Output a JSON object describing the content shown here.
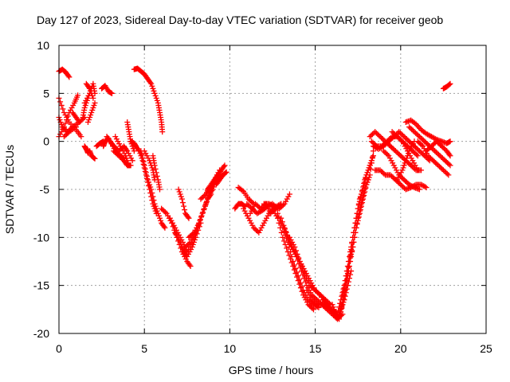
{
  "chart_data": {
    "type": "scatter",
    "title": "Day 127 of 2023, Sidereal Day-to-day VTEC variation (SDTVAR) for receiver geob",
    "xlabel": "GPS time / hours",
    "ylabel": "SDTVAR / TECUs",
    "xlim": [
      0,
      25
    ],
    "ylim": [
      -20,
      10
    ],
    "xticks": [
      0,
      5,
      10,
      15,
      20,
      25
    ],
    "yticks": [
      -20,
      -15,
      -10,
      -5,
      0,
      5,
      10
    ],
    "xtick_labels": [
      "0",
      "5",
      "10",
      "15",
      "20",
      "25"
    ],
    "ytick_labels": [
      "-20",
      "-15",
      "-10",
      "-5",
      "0",
      "5",
      "10"
    ],
    "grid": true,
    "marker": "+",
    "color": "#ff0000",
    "series": [
      {
        "x": [
          0.0,
          0.2,
          0.4,
          0.6
        ],
        "y": [
          7.3,
          7.5,
          7.2,
          6.7
        ]
      },
      {
        "x": [
          0.0,
          0.3,
          0.6,
          1.0,
          1.3
        ],
        "y": [
          4.5,
          3.0,
          2.0,
          1.2,
          0.5
        ]
      },
      {
        "x": [
          0.0,
          0.2,
          0.5,
          0.8,
          1.2,
          1.5
        ],
        "y": [
          2.5,
          1.5,
          1.0,
          1.5,
          2.0,
          2.5
        ]
      },
      {
        "x": [
          0.0,
          0.3,
          0.6,
          0.9,
          1.1
        ],
        "y": [
          0.5,
          1.5,
          3.0,
          4.0,
          4.8
        ]
      },
      {
        "x": [
          0.3,
          0.6,
          1.0
        ],
        "y": [
          0.5,
          1.0,
          1.5
        ]
      },
      {
        "x": [
          0.8,
          1.0,
          1.2
        ],
        "y": [
          3.0,
          2.5,
          2.0
        ]
      },
      {
        "x": [
          1.5,
          1.6,
          1.7
        ],
        "y": [
          -0.5,
          -0.8,
          -1.2
        ]
      },
      {
        "x": [
          1.4,
          1.5,
          1.7,
          1.9
        ],
        "y": [
          2.5,
          3.5,
          4.5,
          5.5
        ]
      },
      {
        "x": [
          1.5,
          1.8,
          2.0,
          2.1
        ],
        "y": [
          4.0,
          5.0,
          6.0,
          5.0
        ]
      },
      {
        "x": [
          1.6,
          1.8,
          2.0
        ],
        "y": [
          6.0,
          5.5,
          4.5
        ]
      },
      {
        "x": [
          1.7,
          1.9,
          2.1
        ],
        "y": [
          2.0,
          3.0,
          4.0
        ]
      },
      {
        "x": [
          1.8,
          1.9,
          2.1
        ],
        "y": [
          -1.0,
          -1.5,
          -1.8
        ]
      },
      {
        "x": [
          2.2,
          2.4,
          2.6
        ],
        "y": [
          -0.5,
          -0.2,
          0.0
        ]
      },
      {
        "x": [
          2.5,
          2.7,
          2.9,
          3.1
        ],
        "y": [
          5.5,
          5.8,
          5.2,
          5.0
        ]
      },
      {
        "x": [
          2.6,
          2.7,
          2.9
        ],
        "y": [
          -0.5,
          0.0,
          0.3
        ]
      },
      {
        "x": [
          2.8,
          3.0,
          3.2,
          3.4
        ],
        "y": [
          0.5,
          0.0,
          -0.5,
          -0.8
        ]
      },
      {
        "x": [
          3.0,
          3.3,
          3.6,
          3.8
        ],
        "y": [
          0.0,
          -1.0,
          -1.5,
          -1.8
        ]
      },
      {
        "x": [
          3.2,
          3.5,
          3.8,
          4.0,
          4.2
        ],
        "y": [
          -1.0,
          -1.5,
          -2.0,
          -2.5,
          -2.5
        ]
      },
      {
        "x": [
          3.5,
          3.8,
          4.0,
          4.3
        ],
        "y": [
          -1.0,
          -0.5,
          -1.0,
          -2.0
        ]
      },
      {
        "x": [
          3.3,
          3.6,
          3.9,
          4.1
        ],
        "y": [
          0.5,
          -0.5,
          -1.5,
          -2.5
        ]
      },
      {
        "x": [
          4.0,
          4.1,
          4.2,
          4.4
        ],
        "y": [
          2.0,
          1.0,
          0.0,
          -1.0
        ]
      },
      {
        "x": [
          4.2,
          4.4,
          4.5
        ],
        "y": [
          0.0,
          -0.2,
          -0.5
        ]
      },
      {
        "x": [
          4.4,
          4.6,
          4.8,
          5.0,
          5.2,
          5.4,
          5.6,
          5.8,
          5.9,
          6.0,
          6.05
        ],
        "y": [
          7.5,
          7.6,
          7.3,
          7.0,
          6.5,
          6.0,
          5.0,
          4.0,
          3.0,
          2.0,
          1.0
        ]
      },
      {
        "x": [
          4.5,
          4.7,
          4.9,
          5.1,
          5.3,
          5.5,
          5.7
        ],
        "y": [
          -0.5,
          -1.0,
          -2.0,
          -3.5,
          -5.0,
          -6.5,
          -7.5
        ]
      },
      {
        "x": [
          4.8,
          5.0,
          5.2,
          5.4,
          5.6,
          5.8,
          6.0,
          6.2
        ],
        "y": [
          -1.0,
          -2.5,
          -4.0,
          -5.0,
          -6.5,
          -7.5,
          -8.5,
          -9.0
        ]
      },
      {
        "x": [
          5.0,
          5.3,
          5.5,
          5.6
        ],
        "y": [
          -1.0,
          -2.0,
          -3.0,
          -4.0
        ]
      },
      {
        "x": [
          5.5,
          5.6,
          5.8,
          5.9
        ],
        "y": [
          -1.5,
          -2.5,
          -4.0,
          -5.0
        ]
      },
      {
        "x": [
          6.0,
          6.3,
          6.6,
          6.9,
          7.2,
          7.5,
          7.7
        ],
        "y": [
          -7.0,
          -7.5,
          -8.5,
          -10.0,
          -11.5,
          -12.5,
          -13.0
        ]
      },
      {
        "x": [
          6.5,
          6.8,
          7.1,
          7.4,
          7.7,
          8.0,
          8.2
        ],
        "y": [
          -8.0,
          -9.0,
          -10.0,
          -11.0,
          -10.5,
          -9.5,
          -8.5
        ]
      },
      {
        "x": [
          6.8,
          7.1,
          7.3,
          7.5,
          7.8,
          8.0,
          8.3
        ],
        "y": [
          -9.5,
          -10.5,
          -11.5,
          -12.0,
          -11.0,
          -10.0,
          -8.5
        ]
      },
      {
        "x": [
          7.0,
          7.2,
          7.4,
          7.6
        ],
        "y": [
          -5.0,
          -6.0,
          -7.5,
          -8.0
        ]
      },
      {
        "x": [
          7.2,
          7.5,
          7.8,
          8.1,
          8.4,
          8.7,
          9.0,
          9.3
        ],
        "y": [
          -11.0,
          -11.5,
          -10.5,
          -9.0,
          -7.5,
          -6.0,
          -4.5,
          -3.5
        ]
      },
      {
        "x": [
          7.6,
          7.9,
          8.2,
          8.5,
          8.8,
          9.1,
          9.4
        ],
        "y": [
          -10.0,
          -9.5,
          -8.5,
          -7.0,
          -5.5,
          -4.0,
          -3.0
        ]
      },
      {
        "x": [
          8.3,
          8.6,
          8.8
        ],
        "y": [
          -6.0,
          -5.5,
          -4.8
        ]
      },
      {
        "x": [
          8.5,
          8.7,
          8.9
        ],
        "y": [
          -7.0,
          -6.0,
          -5.5
        ]
      },
      {
        "x": [
          8.7,
          8.9,
          9.1,
          9.3,
          9.5,
          9.7
        ],
        "y": [
          -5.0,
          -4.5,
          -4.0,
          -3.5,
          -3.0,
          -2.5
        ]
      },
      {
        "x": [
          8.8,
          9.0,
          9.2,
          9.4,
          9.6,
          9.8
        ],
        "y": [
          -5.5,
          -5.0,
          -4.0,
          -3.8,
          -3.5,
          -3.2
        ]
      },
      {
        "x": [
          9.2,
          9.4,
          9.6
        ],
        "y": [
          -4.5,
          -4.0,
          -3.5
        ]
      },
      {
        "x": [
          10.3,
          10.5,
          10.7,
          10.9
        ],
        "y": [
          -7.0,
          -6.5,
          -6.5,
          -6.8
        ]
      },
      {
        "x": [
          10.5,
          10.8,
          11.1,
          11.4
        ],
        "y": [
          -4.8,
          -5.2,
          -6.0,
          -6.5
        ]
      },
      {
        "x": [
          10.8,
          11.1,
          11.4,
          11.7,
          12.0,
          12.3,
          12.6
        ],
        "y": [
          -7.0,
          -8.0,
          -9.0,
          -9.5,
          -8.5,
          -7.5,
          -7.0
        ]
      },
      {
        "x": [
          11.0,
          11.3,
          11.6,
          11.9,
          12.2,
          12.5,
          12.8
        ],
        "y": [
          -6.5,
          -7.0,
          -7.5,
          -7.2,
          -6.8,
          -6.5,
          -7.0
        ]
      },
      {
        "x": [
          11.2,
          11.5,
          11.8,
          12.1,
          12.4,
          12.7,
          13.0
        ],
        "y": [
          -7.5,
          -6.5,
          -7.0,
          -6.5,
          -7.5,
          -6.8,
          -6.5
        ]
      },
      {
        "x": [
          12.0,
          12.3,
          12.6,
          12.9,
          13.2,
          13.5
        ],
        "y": [
          -6.5,
          -6.5,
          -6.8,
          -7.0,
          -6.5,
          -5.5
        ]
      },
      {
        "x": [
          12.5,
          12.8,
          13.1,
          13.4,
          13.7,
          14.0,
          14.3,
          14.6,
          14.9
        ],
        "y": [
          -7.0,
          -8.0,
          -10.0,
          -11.5,
          -13.0,
          -14.5,
          -16.0,
          -17.0,
          -17.5
        ]
      },
      {
        "x": [
          12.8,
          13.1,
          13.4,
          13.7,
          14.0,
          14.3,
          14.6,
          14.9,
          15.2
        ],
        "y": [
          -7.5,
          -9.0,
          -10.5,
          -12.5,
          -14.0,
          -15.5,
          -16.5,
          -17.0,
          -17.3
        ]
      },
      {
        "x": [
          13.0,
          13.3,
          13.6,
          13.9,
          14.2,
          14.5,
          14.8,
          15.1,
          15.4,
          15.7
        ],
        "y": [
          -8.0,
          -9.5,
          -11.0,
          -12.0,
          -13.5,
          -15.0,
          -16.0,
          -16.5,
          -17.0,
          -17.5
        ]
      },
      {
        "x": [
          13.2,
          13.5,
          13.8,
          14.1,
          14.4,
          14.7,
          15.0,
          15.3,
          15.6,
          15.9
        ],
        "y": [
          -9.0,
          -10.5,
          -11.5,
          -12.5,
          -13.5,
          -14.5,
          -15.5,
          -16.0,
          -16.5,
          -17.0
        ]
      },
      {
        "x": [
          13.5,
          13.8,
          14.1,
          14.4,
          14.7,
          15.0,
          15.3,
          15.6,
          15.9,
          16.2
        ],
        "y": [
          -10.0,
          -11.0,
          -12.5,
          -14.0,
          -15.0,
          -15.5,
          -16.0,
          -17.0,
          -17.5,
          -17.8
        ]
      },
      {
        "x": [
          14.5,
          14.8,
          15.1,
          15.4,
          15.7,
          16.0,
          16.3,
          16.6
        ],
        "y": [
          -15.5,
          -16.5,
          -17.0,
          -17.0,
          -17.5,
          -18.0,
          -18.5,
          -18.0
        ]
      },
      {
        "x": [
          15.5,
          15.7,
          15.9,
          16.1,
          16.3,
          16.5,
          16.7,
          16.9,
          17.1
        ],
        "y": [
          -16.5,
          -17.0,
          -17.5,
          -18.0,
          -18.5,
          -17.5,
          -16.5,
          -15.0,
          -13.5
        ]
      },
      {
        "x": [
          16.0,
          16.2,
          16.4,
          16.6,
          16.8,
          17.0,
          17.2,
          17.4,
          17.6,
          17.8,
          18.0,
          18.2,
          18.4
        ],
        "y": [
          -17.0,
          -18.0,
          -18.5,
          -17.0,
          -15.0,
          -12.5,
          -10.0,
          -8.0,
          -6.0,
          -5.0,
          -3.5,
          -2.5,
          -1.5
        ]
      },
      {
        "x": [
          16.3,
          16.5,
          16.7,
          16.9,
          17.1,
          17.3,
          17.5,
          17.7,
          17.9,
          18.1,
          18.3
        ],
        "y": [
          -18.0,
          -16.5,
          -15.0,
          -13.0,
          -11.0,
          -9.0,
          -7.0,
          -5.5,
          -4.0,
          -3.0,
          -2.0
        ]
      },
      {
        "x": [
          16.5,
          16.7,
          16.9,
          17.1,
          17.3,
          17.5,
          17.7,
          17.9,
          18.1
        ],
        "y": [
          -17.5,
          -16.0,
          -14.0,
          -12.0,
          -10.0,
          -8.0,
          -6.5,
          -5.0,
          -4.0
        ]
      },
      {
        "x": [
          16.6,
          16.8,
          17.0,
          17.2,
          17.4,
          17.6,
          17.8,
          18.0,
          18.2,
          18.4
        ],
        "y": [
          -16.0,
          -14.5,
          -12.5,
          -11.0,
          -9.0,
          -7.5,
          -6.0,
          -4.5,
          -3.5,
          -1.0
        ]
      },
      {
        "x": [
          18.2,
          18.5,
          18.8,
          19.1,
          19.4,
          19.7,
          20.0,
          20.3,
          20.6,
          20.9,
          21.2
        ],
        "y": [
          0.5,
          1.0,
          0.5,
          0.0,
          -0.5,
          -1.0,
          -1.5,
          -2.0,
          -2.5,
          -3.0,
          -3.0
        ]
      },
      {
        "x": [
          18.3,
          18.6,
          18.9,
          19.2,
          19.5,
          19.8,
          20.1,
          20.4,
          20.7,
          21.0
        ],
        "y": [
          0.0,
          -0.5,
          -0.5,
          0.0,
          0.5,
          0.5,
          0.0,
          -0.5,
          -1.0,
          -1.5
        ]
      },
      {
        "x": [
          18.4,
          18.7,
          19.0,
          19.3,
          19.6,
          19.9,
          20.2,
          20.5,
          20.8,
          21.1,
          21.4,
          21.7
        ],
        "y": [
          -0.5,
          -0.8,
          -0.5,
          0.0,
          0.5,
          1.0,
          0.5,
          0.0,
          -0.5,
          -1.0,
          -1.5,
          -2.0
        ]
      },
      {
        "x": [
          18.5,
          18.8,
          19.1,
          19.4,
          19.7,
          20.0,
          20.3,
          20.6,
          20.9,
          21.2,
          21.5
        ],
        "y": [
          -3.0,
          -3.0,
          -3.5,
          -3.5,
          -4.0,
          -4.5,
          -5.0,
          -4.8,
          -4.5,
          -4.5,
          -4.8
        ]
      },
      {
        "x": [
          19.0,
          19.3,
          19.6,
          19.9,
          20.2,
          20.5,
          20.8,
          21.1
        ],
        "y": [
          -1.0,
          -1.5,
          -2.5,
          -3.5,
          -4.0,
          -4.5,
          -4.8,
          -5.0
        ]
      },
      {
        "x": [
          19.5,
          19.8,
          20.1,
          20.4,
          20.7,
          21.0
        ],
        "y": [
          1.0,
          0.5,
          0.0,
          -1.0,
          -2.0,
          -3.0
        ]
      },
      {
        "x": [
          19.8,
          20.1,
          20.3,
          20.5,
          20.8
        ],
        "y": [
          -4.0,
          -3.0,
          -2.0,
          -1.0,
          0.0
        ]
      },
      {
        "x": [
          20.3,
          20.6,
          20.9,
          21.2,
          21.5,
          21.8,
          22.1,
          22.4,
          22.7,
          22.9
        ],
        "y": [
          2.0,
          2.2,
          1.8,
          1.2,
          0.8,
          0.5,
          0.2,
          0.0,
          -0.2,
          0.0
        ]
      },
      {
        "x": [
          20.5,
          20.8,
          21.1,
          21.4,
          21.7,
          22.0,
          22.3,
          22.6,
          22.9
        ],
        "y": [
          1.5,
          1.0,
          0.5,
          0.0,
          -0.5,
          -1.0,
          -1.5,
          -2.0,
          -2.5
        ]
      },
      {
        "x": [
          21.0,
          21.3,
          21.6,
          21.9,
          22.2,
          22.5,
          22.8
        ],
        "y": [
          0.0,
          -0.5,
          -1.5,
          -2.0,
          -2.5,
          -3.0,
          -3.5
        ]
      },
      {
        "x": [
          21.5,
          21.8,
          22.1,
          22.4,
          22.7,
          22.9
        ],
        "y": [
          -1.0,
          -0.5,
          0.0,
          -0.5,
          -1.0,
          -1.5
        ]
      },
      {
        "x": [
          22.5,
          22.7,
          22.9
        ],
        "y": [
          5.5,
          5.7,
          6.0
        ]
      }
    ]
  }
}
